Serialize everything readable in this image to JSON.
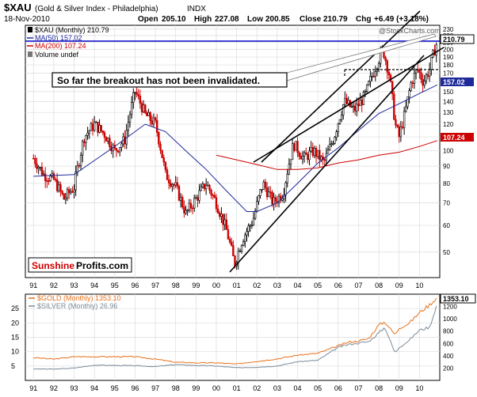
{
  "header": {
    "symbol": "$XAU",
    "name": "(Gold & Silver Index - Philadelphia)",
    "exchange": "INDX",
    "date": "18-Nov-2010",
    "open_label": "Open",
    "open": "205.10",
    "high_label": "High",
    "high": "227.08",
    "low_label": "Low",
    "low": "200.85",
    "close_label": "Close",
    "close": "210.79",
    "chg_label": "Chg",
    "chg": "+6.49 (+3.18%)",
    "watermark": "@StockCharts.com"
  },
  "main_legend": {
    "series": "$XAU (Monthly) 210.79",
    "ma50": "MA(50) 157.02",
    "ma200": "MA(200) 107.24",
    "volume": "Volume undef"
  },
  "annotation": "So far the breakout has not been invalidated.",
  "logo": {
    "part1": "Sunshine",
    "part2": "Profits.com"
  },
  "price_tags": {
    "close": "210.79",
    "ma50": "157.02",
    "ma200": "107.24"
  },
  "lower_legend": {
    "gold": "$GOLD (Monthly) 1353.10",
    "silver": "$SILVER (Monthly) 26.96"
  },
  "lower_tag": "1353.10",
  "colors": {
    "up": "#000000",
    "down": "#cc0000",
    "ma50": "#1f2a9a",
    "ma200": "#cc0000",
    "breakout": "#0000cc",
    "gold": "#e8701a",
    "silver": "#7a8a9a",
    "grid": "#dcdcdc",
    "logo_red": "#cc0000"
  },
  "chart_data": [
    {
      "type": "candlestick",
      "title": "$XAU (Gold & Silver Index - Philadelphia) INDX",
      "scale": "log",
      "x_ticks": [
        "91",
        "92",
        "93",
        "94",
        "95",
        "96",
        "97",
        "98",
        "99",
        "00",
        "01",
        "02",
        "03",
        "04",
        "05",
        "06",
        "07",
        "08",
        "09",
        "10"
      ],
      "y_ticks": [
        50,
        60,
        70,
        80,
        90,
        100,
        110,
        120,
        130,
        140,
        150,
        160,
        170,
        180,
        190,
        200,
        210,
        220,
        230
      ],
      "ylim": [
        42,
        236
      ],
      "grid": true,
      "legend_position": "top-left",
      "series": [
        {
          "name": "$XAU (Monthly) 210.79",
          "kind": "close",
          "x": [
            1991.0,
            1991.5,
            1992.0,
            1992.5,
            1993.0,
            1993.5,
            1994.0,
            1994.5,
            1995.0,
            1995.5,
            1996.0,
            1996.5,
            1997.0,
            1997.5,
            1998.0,
            1998.5,
            1999.0,
            1999.5,
            2000.0,
            2000.5,
            2000.9,
            2001.3,
            2001.8,
            2002.3,
            2002.8,
            2003.3,
            2003.8,
            2004.3,
            2004.8,
            2005.3,
            2005.8,
            2006.3,
            2006.8,
            2007.3,
            2007.8,
            2008.2,
            2008.5,
            2008.8,
            2009.0,
            2009.3,
            2009.6,
            2009.9,
            2010.2,
            2010.5,
            2010.8,
            2010.88
          ],
          "y": [
            95,
            85,
            82,
            72,
            78,
            110,
            120,
            112,
            100,
            108,
            150,
            128,
            120,
            85,
            78,
            65,
            72,
            80,
            70,
            58,
            46,
            55,
            62,
            80,
            70,
            75,
            105,
            95,
            100,
            92,
            110,
            140,
            132,
            145,
            175,
            200,
            170,
            120,
            110,
            130,
            160,
            175,
            160,
            175,
            205,
            210.79
          ]
        },
        {
          "name": "MA(50) 157.02",
          "x": [
            1991.0,
            1993.0,
            1995.0,
            1996.5,
            1997.5,
            1998.5,
            1999.5,
            2000.5,
            2001.5,
            2002.0,
            2003.0,
            2004.0,
            2005.0,
            2006.0,
            2007.0,
            2008.0,
            2009.0,
            2010.0,
            2010.88
          ],
          "y": [
            84,
            85,
            103,
            120,
            114,
            100,
            88,
            76,
            66,
            66,
            70,
            80,
            92,
            102,
            115,
            129,
            138,
            148,
            157.02
          ]
        },
        {
          "name": "MA(200) 107.24",
          "x": [
            2000.0,
            2001.0,
            2002.0,
            2003.0,
            2004.0,
            2005.0,
            2006.0,
            2007.0,
            2008.0,
            2009.0,
            2010.0,
            2010.88
          ],
          "y": [
            97,
            94,
            91,
            88,
            88,
            89,
            92,
            94,
            97,
            99,
            103,
            107.24
          ]
        }
      ],
      "annotations": [
        "So far the breakout has not been invalidated."
      ]
    },
    {
      "type": "line",
      "x_ticks": [
        "91",
        "92",
        "93",
        "94",
        "95",
        "96",
        "97",
        "98",
        "99",
        "00",
        "01",
        "02",
        "03",
        "04",
        "05",
        "06",
        "07",
        "08",
        "09",
        "10"
      ],
      "y_ticks_left": [
        5,
        10,
        15,
        20,
        25
      ],
      "y_ticks_right": [
        200,
        400,
        600,
        800,
        1000,
        1200
      ],
      "ylim_left": [
        0,
        30
      ],
      "ylim_right": [
        0,
        1400
      ],
      "grid": true,
      "legend_position": "top-left",
      "series": [
        {
          "name": "$GOLD (Monthly) 1353.10",
          "axis": "right",
          "x": [
            1991.0,
            1992.0,
            1993.0,
            1994.0,
            1995.0,
            1996.0,
            1997.0,
            1998.0,
            1999.0,
            2000.0,
            2001.0,
            2002.0,
            2003.0,
            2004.0,
            2005.0,
            2006.0,
            2006.5,
            2007.0,
            2007.5,
            2008.0,
            2008.3,
            2008.8,
            2009.0,
            2009.5,
            2010.0,
            2010.5,
            2010.88
          ],
          "y": [
            370,
            345,
            385,
            385,
            385,
            385,
            345,
            295,
            285,
            285,
            265,
            310,
            350,
            410,
            440,
            560,
            620,
            640,
            680,
            900,
            950,
            740,
            850,
            930,
            1100,
            1230,
            1353.1
          ]
        },
        {
          "name": "$SILVER (Monthly) 26.96",
          "axis": "left",
          "x": [
            1991.0,
            1992.0,
            1993.0,
            1994.0,
            1995.0,
            1996.0,
            1997.0,
            1998.0,
            1999.0,
            2000.0,
            2001.0,
            2002.0,
            2003.0,
            2004.0,
            2005.0,
            2006.0,
            2006.5,
            2007.0,
            2007.5,
            2008.0,
            2008.3,
            2008.8,
            2009.0,
            2009.5,
            2010.0,
            2010.5,
            2010.88
          ],
          "y": [
            4.0,
            3.9,
            4.3,
            5.3,
            5.2,
            5.1,
            4.8,
            5.5,
            5.2,
            5.0,
            4.4,
            4.6,
            5.0,
            6.5,
            7.0,
            11.5,
            12.5,
            13.0,
            13.5,
            16.5,
            18.5,
            9.5,
            11.5,
            14.0,
            17.5,
            18.5,
            26.96
          ]
        }
      ]
    }
  ]
}
